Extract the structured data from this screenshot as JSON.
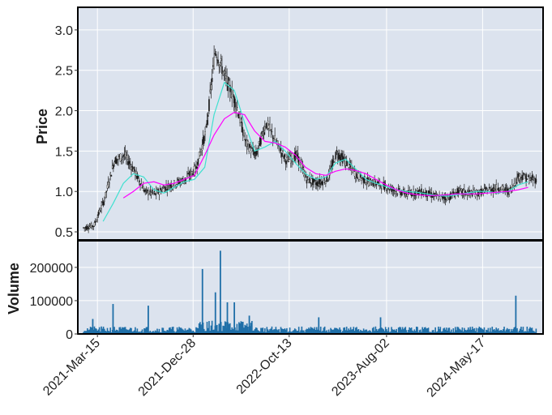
{
  "chart_data": [
    {
      "type": "candlestick",
      "title": "",
      "xlabel": "",
      "ylabel": "Price",
      "ylim": [
        0.4,
        3.28
      ],
      "yticks": [
        "0.5",
        "1.0",
        "1.5",
        "2.0",
        "2.5",
        "3.0"
      ],
      "xticks": [
        "2021-Mar-15",
        "2021-Dec-28",
        "2022-Oct-13",
        "2023-Aug-02",
        "2024-May-17"
      ],
      "grid": true,
      "colors": {
        "background": "#dce3ee",
        "candle": "#1b1b1b",
        "ma_short": "#40e0d0",
        "ma_long": "#ff00ff"
      },
      "series": [
        {
          "kind": "close",
          "x": [
            "2021-01-05",
            "2021-02-05",
            "2021-03-05",
            "2021-04-05",
            "2021-05-05",
            "2021-06-05",
            "2021-07-05",
            "2021-08-05",
            "2021-09-05",
            "2021-10-05",
            "2021-11-05",
            "2021-12-05",
            "2022-01-05",
            "2022-02-05",
            "2022-03-05",
            "2022-04-05",
            "2022-05-05",
            "2022-06-05",
            "2022-07-05",
            "2022-08-05",
            "2022-09-05",
            "2022-10-05",
            "2022-11-05",
            "2022-12-05",
            "2023-01-05",
            "2023-02-05",
            "2023-03-05",
            "2023-04-05",
            "2023-05-05",
            "2023-06-05",
            "2023-07-05",
            "2023-08-05",
            "2023-09-05",
            "2023-10-05",
            "2023-11-05",
            "2023-12-05",
            "2024-01-05",
            "2024-02-05",
            "2024-03-05",
            "2024-04-05",
            "2024-05-05",
            "2024-06-05",
            "2024-07-05",
            "2024-08-05",
            "2024-09-05",
            "2024-10-05"
          ],
          "values": [
            0.56,
            0.55,
            0.58,
            0.9,
            1.38,
            1.45,
            1.25,
            1.0,
            0.97,
            1.05,
            1.1,
            1.15,
            1.28,
            1.75,
            2.75,
            2.4,
            2.1,
            1.6,
            1.45,
            1.85,
            1.6,
            1.38,
            1.45,
            1.15,
            1.1,
            1.15,
            1.48,
            1.35,
            1.2,
            1.12,
            1.1,
            1.05,
            1.0,
            0.97,
            1.0,
            0.97,
            0.93,
            0.93,
            1.0,
            0.98,
            0.98,
            1.02,
            1.05,
            1.0,
            1.2,
            1.15
          ]
        },
        {
          "kind": "moving_average_short",
          "x": [
            "2021-04-01",
            "2021-05-01",
            "2021-06-01",
            "2021-07-01",
            "2021-08-01",
            "2021-09-01",
            "2021-10-01",
            "2021-11-01",
            "2021-12-01",
            "2022-01-01",
            "2022-02-01",
            "2022-03-01",
            "2022-04-01",
            "2022-05-01",
            "2022-06-01",
            "2022-07-01",
            "2022-08-01",
            "2022-09-01",
            "2022-10-01",
            "2022-11-01",
            "2022-12-01",
            "2023-01-01",
            "2023-02-01",
            "2023-03-01",
            "2023-04-01",
            "2023-05-01",
            "2023-06-01",
            "2023-07-01",
            "2023-08-01",
            "2023-09-01",
            "2023-10-01",
            "2023-11-01",
            "2023-12-01",
            "2024-01-01",
            "2024-02-01",
            "2024-03-01",
            "2024-04-01",
            "2024-05-01",
            "2024-06-01",
            "2024-07-01",
            "2024-08-01",
            "2024-09-01",
            "2024-10-01"
          ],
          "values": [
            0.63,
            0.85,
            1.1,
            1.22,
            1.18,
            1.02,
            0.98,
            1.05,
            1.12,
            1.15,
            1.3,
            1.95,
            2.35,
            2.25,
            1.85,
            1.5,
            1.55,
            1.62,
            1.5,
            1.35,
            1.22,
            1.15,
            1.18,
            1.35,
            1.4,
            1.28,
            1.15,
            1.1,
            1.06,
            1.02,
            1.0,
            0.99,
            0.97,
            0.95,
            0.94,
            0.96,
            0.98,
            1.0,
            1.0,
            0.98,
            1.0,
            1.08,
            1.12
          ]
        },
        {
          "kind": "moving_average_long",
          "x": [
            "2021-06-01",
            "2021-07-01",
            "2021-08-01",
            "2021-09-01",
            "2021-10-01",
            "2021-11-01",
            "2021-12-01",
            "2022-01-01",
            "2022-02-01",
            "2022-03-01",
            "2022-04-01",
            "2022-05-01",
            "2022-06-01",
            "2022-07-01",
            "2022-08-01",
            "2022-09-01",
            "2022-10-01",
            "2022-11-01",
            "2022-12-01",
            "2023-01-01",
            "2023-02-01",
            "2023-03-01",
            "2023-04-01",
            "2023-05-01",
            "2023-06-01",
            "2023-07-01",
            "2023-08-01",
            "2023-09-01",
            "2023-10-01",
            "2023-11-01",
            "2023-12-01",
            "2024-01-01",
            "2024-02-01",
            "2024-03-01",
            "2024-04-01",
            "2024-05-01",
            "2024-06-01",
            "2024-07-01",
            "2024-08-01",
            "2024-09-01",
            "2024-10-01"
          ],
          "values": [
            0.92,
            1.0,
            1.1,
            1.12,
            1.08,
            1.1,
            1.15,
            1.2,
            1.45,
            1.7,
            1.9,
            1.98,
            1.95,
            1.75,
            1.62,
            1.6,
            1.55,
            1.45,
            1.3,
            1.22,
            1.2,
            1.25,
            1.28,
            1.26,
            1.22,
            1.15,
            1.08,
            1.02,
            0.98,
            0.96,
            0.95,
            0.95,
            0.96,
            0.97,
            0.97,
            0.97,
            0.98,
            0.99,
            1.0,
            1.02,
            1.05
          ]
        }
      ]
    },
    {
      "type": "bar",
      "title": "",
      "xlabel": "",
      "ylabel": "Volume",
      "ylim": [
        0,
        280000
      ],
      "yticks": [
        "0",
        "100000",
        "200000"
      ],
      "grid": true,
      "colors": {
        "background": "#dce3ee",
        "bar": "#1f6fa8"
      },
      "x": [
        "2021-03-01",
        "2021-05-01",
        "2021-08-15",
        "2022-01-25",
        "2022-03-05",
        "2022-03-20",
        "2022-04-10",
        "2022-05-01",
        "2022-06-15",
        "2023-01-10",
        "2023-07-15",
        "2024-08-25"
      ],
      "values": [
        45000,
        90000,
        85000,
        195000,
        125000,
        250000,
        95000,
        95000,
        55000,
        50000,
        50000,
        115000
      ],
      "baseline_volume": 15000
    }
  ]
}
